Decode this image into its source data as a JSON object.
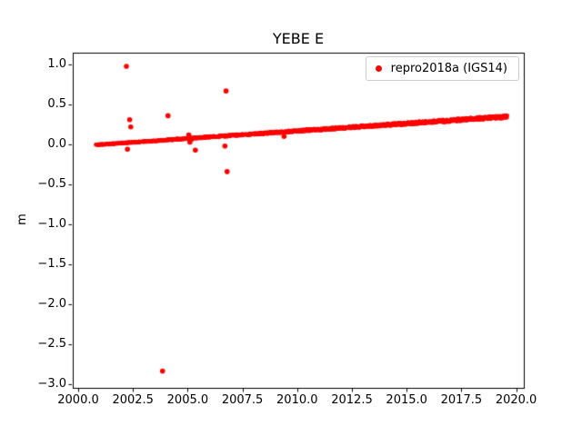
{
  "chart_data": {
    "type": "scatter",
    "title": "YEBE E",
    "xlabel": "",
    "ylabel": "m",
    "xlim": [
      1999.75,
      2020.35
    ],
    "ylim": [
      -3.05,
      1.15
    ],
    "xticks": [
      2000.0,
      2002.5,
      2005.0,
      2007.5,
      2010.0,
      2012.5,
      2015.0,
      2017.5,
      2020.0
    ],
    "yticks": [
      1.0,
      0.5,
      0.0,
      -0.5,
      -1.0,
      -1.5,
      -2.0,
      -2.5,
      -3.0
    ],
    "grid": false,
    "legend": {
      "position": "upper right",
      "entries": [
        {
          "label": "repro2018a (IGS14)",
          "color": "#ff0000",
          "marker": "circle"
        }
      ]
    },
    "series": [
      {
        "name": "repro2018a (IGS14)",
        "color": "#ff0000",
        "marker": "circle",
        "trend": {
          "x_start": 2000.8,
          "x_end": 2019.6,
          "y_start": -0.005,
          "y_end": 0.35,
          "points": 1600,
          "band": 0.03
        },
        "outliers": [
          [
            2002.2,
            0.98
          ],
          [
            2002.35,
            0.31
          ],
          [
            2002.4,
            0.22
          ],
          [
            2002.25,
            -0.06
          ],
          [
            2003.85,
            -2.84
          ],
          [
            2004.1,
            0.36
          ],
          [
            2005.05,
            0.12
          ],
          [
            2005.2,
            0.07
          ],
          [
            2005.1,
            0.03
          ],
          [
            2005.35,
            -0.07
          ],
          [
            2006.75,
            0.67
          ],
          [
            2006.7,
            -0.02
          ],
          [
            2006.8,
            -0.34
          ],
          [
            2009.4,
            0.1
          ]
        ]
      }
    ]
  }
}
